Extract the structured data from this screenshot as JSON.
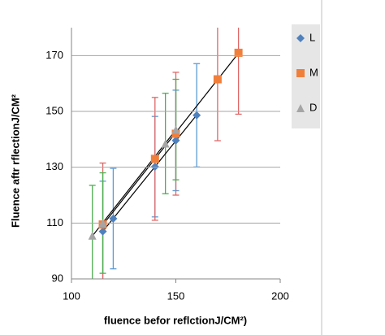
{
  "chart_data": {
    "type": "scatter",
    "x_label": "fluence befor reflctionJ/CM²)",
    "y_label": "Fluence aftr rflectionJ/CM²",
    "xlim": [
      100,
      200
    ],
    "xticks": [
      100,
      150,
      200
    ],
    "ylim": [
      90,
      180
    ],
    "yticks": [
      90,
      110,
      130,
      150,
      170
    ],
    "grid": true,
    "trendline": true,
    "legend": "right",
    "series": [
      {
        "name": "L",
        "color": "#4f81bd",
        "marker": "diamond",
        "error_color": "#5b9bd5",
        "x": [
          115,
          120,
          140,
          150,
          160
        ],
        "values": [
          107,
          111.6,
          130.2,
          139.6,
          148.6
        ],
        "errors": [
          18,
          18,
          18,
          18,
          18.5
        ]
      },
      {
        "name": "M",
        "color": "#f07f3c",
        "marker": "square",
        "error_color": "#e06666",
        "x": [
          115,
          140,
          150,
          170,
          180
        ],
        "values": [
          109.5,
          133,
          142,
          161.5,
          171
        ],
        "errors": [
          22,
          22,
          22,
          22,
          22
        ]
      },
      {
        "name": "D",
        "color": "#a5a5a5",
        "marker": "triangle",
        "error_color": "#4caf50",
        "x": [
          110,
          115,
          145,
          150
        ],
        "values": [
          105.5,
          110,
          138.5,
          143.5
        ],
        "errors": [
          18,
          18,
          18,
          18
        ]
      }
    ]
  }
}
